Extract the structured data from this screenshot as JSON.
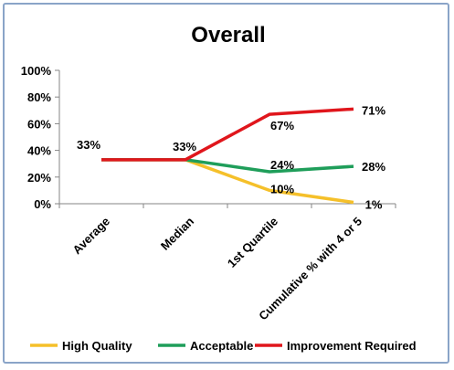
{
  "chart_data": {
    "type": "line",
    "title": "Overall",
    "categories": [
      "Average",
      "Median",
      "1st Quartile",
      "Cumulative % with 4 or 5"
    ],
    "ylim": [
      0,
      100
    ],
    "yticks": [
      "0%",
      "20%",
      "40%",
      "60%",
      "80%",
      "100%"
    ],
    "grid": false,
    "legend_position": "bottom",
    "series": [
      {
        "name": "High Quality",
        "color": "#f5c02a",
        "values": [
          33,
          33,
          10,
          1
        ],
        "labels": [
          "",
          "",
          "10%",
          "1%"
        ]
      },
      {
        "name": "Acceptable",
        "color": "#1f9e5a",
        "values": [
          33,
          33,
          24,
          28
        ],
        "labels": [
          "",
          "",
          "24%",
          "28%"
        ]
      },
      {
        "name": "Improvement Required",
        "color": "#e0161c",
        "values": [
          33,
          33,
          67,
          71
        ],
        "labels": [
          "33%",
          "33%",
          "67%",
          "71%"
        ]
      }
    ]
  }
}
